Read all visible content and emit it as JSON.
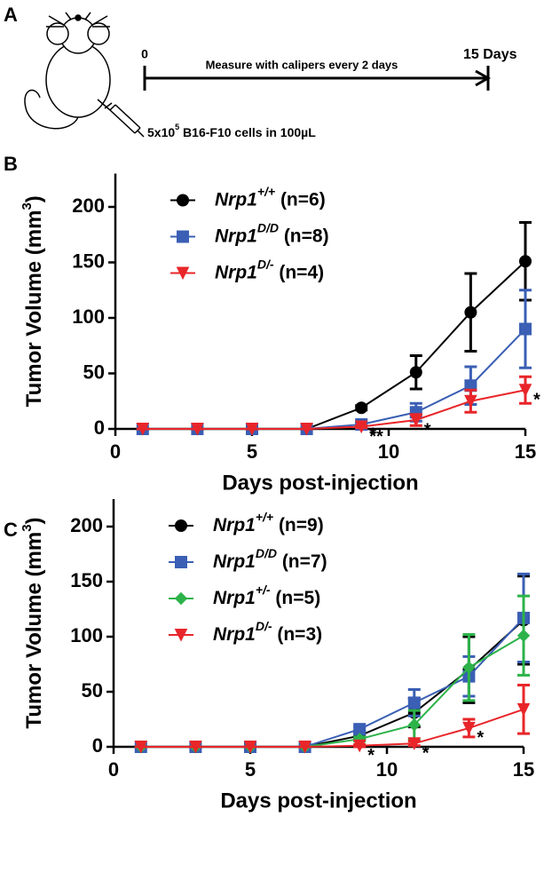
{
  "panels": [
    "A",
    "B",
    "C"
  ],
  "schematic": {
    "start": "0",
    "end": "15 Days",
    "label": "Measure with calipers every 2 days",
    "injection": [
      "5x10",
      "5",
      " B16-F10 cells in 100µL"
    ]
  },
  "chart_data": [
    {
      "type": "line",
      "x_label": "Days post-injection",
      "y_label_parts": [
        "Tumor Volume (mm",
        "3",
        ")"
      ],
      "xlim": [
        0,
        15
      ],
      "xticks": [
        0,
        5,
        10,
        15
      ],
      "ylim": [
        0,
        230
      ],
      "yticks": [
        0,
        50,
        100,
        150,
        200
      ],
      "x": [
        1,
        3,
        5,
        7,
        9,
        11,
        13,
        15
      ],
      "series": [
        {
          "name_parts": [
            "Nrp1",
            "+/+",
            " (n=6)"
          ],
          "color": "#000000",
          "marker": "circle",
          "values": [
            0,
            0,
            0,
            0,
            19,
            51,
            105,
            151
          ],
          "errors": [
            0,
            0,
            0,
            0,
            2,
            15,
            35,
            35
          ],
          "significance": [
            null,
            null,
            null,
            null,
            null,
            null,
            null,
            null
          ]
        },
        {
          "name_parts": [
            "Nrp1",
            "D/D",
            " (n=8)"
          ],
          "color": "#3a5fb4",
          "marker": "square",
          "values": [
            0,
            0,
            0,
            0,
            4,
            15,
            39,
            90
          ],
          "errors": [
            0,
            0,
            0,
            0,
            2,
            8,
            17,
            35
          ],
          "significance": [
            null,
            null,
            null,
            null,
            "*",
            null,
            null,
            null
          ]
        },
        {
          "name_parts": [
            "Nrp1",
            "D/-",
            " (n=4)"
          ],
          "color": "#e8262a",
          "marker": "triangle-down",
          "values": [
            0,
            0,
            0,
            0,
            2,
            8,
            25,
            35
          ],
          "errors": [
            0,
            0,
            0,
            0,
            1,
            5,
            10,
            12
          ],
          "significance": [
            null,
            null,
            null,
            null,
            "**",
            "*",
            null,
            "*"
          ]
        }
      ]
    },
    {
      "type": "line",
      "x_label": "Days post-injection",
      "y_label_parts": [
        "Tumor Volume (mm",
        "3",
        ")"
      ],
      "xlim": [
        0,
        15
      ],
      "xticks": [
        0,
        5,
        10,
        15
      ],
      "ylim": [
        0,
        225
      ],
      "yticks": [
        0,
        50,
        100,
        150,
        200
      ],
      "x": [
        1,
        3,
        5,
        7,
        9,
        11,
        13,
        15
      ],
      "series": [
        {
          "name_parts": [
            "Nrp1",
            "+/+",
            " (n=9)"
          ],
          "color": "#000000",
          "marker": "circle",
          "values": [
            0,
            0,
            0,
            0,
            10,
            31,
            70,
            115
          ],
          "errors": [
            0,
            0,
            0,
            0,
            3,
            13,
            30,
            40
          ],
          "significance": [
            null,
            null,
            null,
            null,
            null,
            null,
            null,
            null
          ]
        },
        {
          "name_parts": [
            "Nrp1",
            "D/D",
            " (n=7)"
          ],
          "color": "#3a5fb4",
          "marker": "square",
          "values": [
            0,
            0,
            0,
            0,
            16,
            40,
            64,
            117
          ],
          "errors": [
            0,
            0,
            0,
            0,
            2,
            12,
            18,
            40
          ],
          "significance": [
            null,
            null,
            null,
            null,
            null,
            null,
            null,
            null
          ]
        },
        {
          "name_parts": [
            "Nrp1",
            "+/-",
            " (n=5)"
          ],
          "color": "#2db34a",
          "marker": "diamond",
          "values": [
            0,
            0,
            0,
            0,
            7,
            20,
            72,
            101
          ],
          "errors": [
            0,
            0,
            0,
            0,
            2,
            13,
            30,
            36
          ],
          "significance": [
            null,
            null,
            null,
            null,
            null,
            null,
            null,
            null
          ]
        },
        {
          "name_parts": [
            "Nrp1",
            "D/-",
            " (n=3)"
          ],
          "color": "#e8262a",
          "marker": "triangle-down",
          "values": [
            0,
            0,
            0,
            0,
            1,
            3,
            17,
            34
          ],
          "errors": [
            0,
            0,
            0,
            0,
            1,
            2,
            8,
            22
          ],
          "significance": [
            null,
            null,
            null,
            null,
            "*",
            "*",
            "*",
            null
          ]
        }
      ]
    }
  ]
}
